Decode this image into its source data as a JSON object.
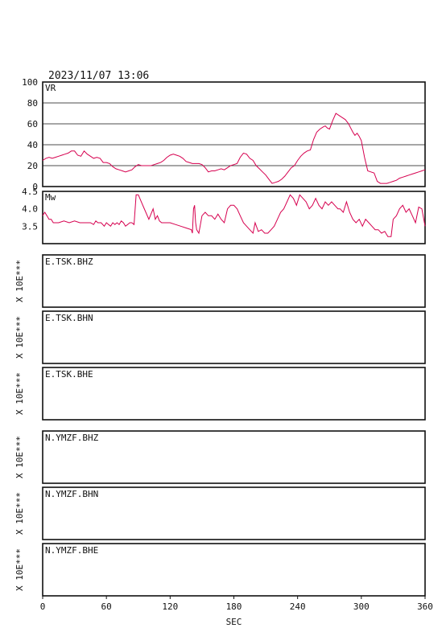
{
  "header": {
    "timestamp": "2023/11/07 13:06"
  },
  "chart_data": [
    {
      "type": "line",
      "panel_label": "VR",
      "ylim": [
        0,
        100
      ],
      "yticks": [
        "100",
        "80",
        "60",
        "40",
        "20",
        "0"
      ],
      "grid": true,
      "series": [
        {
          "color": "#d6004f",
          "x": [
            0,
            3,
            6,
            9,
            12,
            15,
            18,
            21,
            24,
            27,
            30,
            33,
            36,
            39,
            42,
            45,
            48,
            51,
            54,
            57,
            60,
            63,
            66,
            69,
            72,
            75,
            78,
            81,
            84,
            87,
            90,
            93,
            96,
            99,
            102,
            105,
            108,
            111,
            114,
            117,
            120,
            123,
            126,
            129,
            132,
            135,
            138,
            141,
            144,
            147,
            150,
            153,
            156,
            159,
            162,
            165,
            168,
            171,
            174,
            177,
            180,
            183,
            186,
            189,
            192,
            195,
            198,
            201,
            204,
            207,
            210,
            213,
            216,
            219,
            222,
            225,
            228,
            231,
            234,
            237,
            240,
            243,
            246,
            249,
            252,
            255,
            258,
            261,
            264,
            266,
            268,
            270,
            273,
            276,
            279,
            282,
            285,
            288,
            290,
            292,
            294,
            296,
            298,
            300,
            303,
            306,
            309,
            312,
            315,
            318,
            321,
            324,
            327,
            330,
            333,
            336,
            339,
            342,
            345,
            348,
            351,
            354,
            357,
            360
          ],
          "y": [
            25,
            27,
            28,
            27,
            28,
            29,
            30,
            31,
            32,
            34,
            34,
            30,
            29,
            34,
            31,
            29,
            27,
            28,
            27,
            23,
            23,
            22,
            19,
            17,
            16,
            15,
            14,
            15,
            16,
            19,
            21,
            20,
            20,
            20,
            20,
            21,
            22,
            23,
            25,
            28,
            30,
            31,
            30,
            29,
            27,
            24,
            23,
            22,
            22,
            22,
            21,
            18,
            14,
            15,
            15,
            16,
            17,
            16,
            18,
            20,
            21,
            22,
            28,
            32,
            31,
            27,
            25,
            20,
            17,
            14,
            11,
            7,
            3,
            4,
            5,
            7,
            10,
            14,
            18,
            20,
            25,
            29,
            32,
            34,
            35,
            45,
            52,
            55,
            57,
            58,
            56,
            55,
            63,
            70,
            68,
            66,
            64,
            60,
            56,
            52,
            49,
            51,
            48,
            44,
            28,
            15,
            14,
            13,
            5,
            3,
            3,
            3,
            4,
            5,
            6,
            8,
            9,
            10,
            11,
            12,
            13,
            14,
            15,
            16
          ]
        }
      ]
    },
    {
      "type": "line",
      "panel_label": "Mw",
      "ylim": [
        3.0,
        4.5
      ],
      "yticks": [
        "4.5",
        "4.0",
        "3.5"
      ],
      "grid": false,
      "series": [
        {
          "color": "#d6004f",
          "x": [
            0,
            2,
            4,
            6,
            8,
            10,
            15,
            20,
            25,
            30,
            35,
            40,
            45,
            48,
            50,
            52,
            55,
            58,
            60,
            62,
            64,
            66,
            68,
            70,
            72,
            74,
            76,
            78,
            80,
            82,
            84,
            86,
            88,
            90,
            95,
            100,
            104,
            106,
            108,
            110,
            112,
            114,
            116,
            118,
            120,
            125,
            130,
            135,
            140,
            141,
            142,
            143,
            144,
            145,
            147,
            150,
            153,
            156,
            159,
            162,
            165,
            168,
            171,
            174,
            177,
            180,
            183,
            186,
            189,
            192,
            195,
            198,
            200,
            203,
            206,
            209,
            212,
            215,
            218,
            221,
            224,
            227,
            230,
            233,
            236,
            239,
            242,
            245,
            248,
            251,
            254,
            257,
            260,
            263,
            266,
            269,
            272,
            275,
            278,
            280,
            283,
            286,
            289,
            292,
            295,
            298,
            301,
            304,
            307,
            310,
            313,
            316,
            319,
            322,
            325,
            328,
            330,
            333,
            336,
            339,
            342,
            345,
            348,
            351,
            354,
            357,
            360
          ],
          "y": [
            3.8,
            3.9,
            3.8,
            3.7,
            3.7,
            3.6,
            3.6,
            3.65,
            3.6,
            3.65,
            3.6,
            3.6,
            3.6,
            3.55,
            3.65,
            3.6,
            3.6,
            3.5,
            3.6,
            3.55,
            3.5,
            3.6,
            3.55,
            3.6,
            3.55,
            3.65,
            3.6,
            3.5,
            3.55,
            3.6,
            3.6,
            3.55,
            4.4,
            4.4,
            4.05,
            3.7,
            4.0,
            3.7,
            3.8,
            3.65,
            3.6,
            3.6,
            3.6,
            3.6,
            3.6,
            3.55,
            3.5,
            3.45,
            3.4,
            3.3,
            4.0,
            4.1,
            3.6,
            3.4,
            3.3,
            3.8,
            3.9,
            3.8,
            3.8,
            3.7,
            3.85,
            3.7,
            3.6,
            4.0,
            4.1,
            4.1,
            4.0,
            3.8,
            3.6,
            3.5,
            3.4,
            3.3,
            3.6,
            3.35,
            3.4,
            3.3,
            3.3,
            3.4,
            3.5,
            3.7,
            3.9,
            4.0,
            4.2,
            4.4,
            4.3,
            4.1,
            4.4,
            4.3,
            4.2,
            4.0,
            4.1,
            4.3,
            4.1,
            4.0,
            4.2,
            4.1,
            4.2,
            4.1,
            4.0,
            4.0,
            3.9,
            4.2,
            3.9,
            3.7,
            3.6,
            3.7,
            3.5,
            3.7,
            3.6,
            3.5,
            3.4,
            3.4,
            3.3,
            3.35,
            3.2,
            3.2,
            3.7,
            3.8,
            4.0,
            4.1,
            3.9,
            4.0,
            3.8,
            3.6,
            4.05,
            4.0,
            3.5
          ]
        }
      ]
    },
    {
      "type": "line",
      "channel": "E.TSK.BHZ",
      "ylabel": "X 10E***"
    },
    {
      "type": "line",
      "channel": "E.TSK.BHN",
      "ylabel": "X 10E***"
    },
    {
      "type": "line",
      "channel": "E.TSK.BHE",
      "ylabel": "X 10E***"
    },
    {
      "type": "line",
      "channel": "N.YMZF.BHZ",
      "ylabel": "X 10E***"
    },
    {
      "type": "line",
      "channel": "N.YMZF.BHN",
      "ylabel": "X 10E***"
    },
    {
      "type": "line",
      "channel": "N.YMZF.BHE",
      "ylabel": "X 10E***"
    }
  ],
  "x_axis": {
    "label": "SEC",
    "xlim": [
      0,
      360
    ],
    "ticks": [
      0,
      60,
      120,
      180,
      240,
      300,
      360
    ],
    "tick_labels": [
      "0",
      "60",
      "120",
      "180",
      "240",
      "300",
      "360"
    ]
  }
}
